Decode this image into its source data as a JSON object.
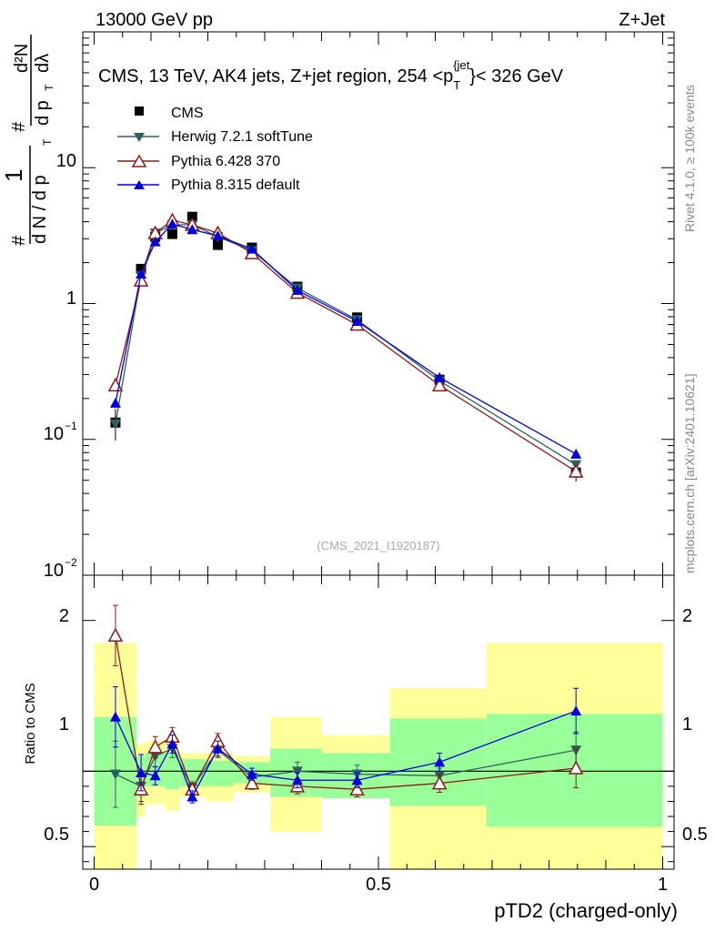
{
  "header": {
    "left": "13000 GeV pp",
    "right": "Z+Jet"
  },
  "side_labels": {
    "rivet": "Rivet 4.1.0, ≥ 100k events",
    "mcplots": "mcplots.cern.ch [arXiv:2401.10621]"
  },
  "chart_data": [
    {
      "type": "scatter",
      "panel": "main",
      "title": "CMS, 13 TeV, AK4 jets, Z+jet region, 254 <p_T^{jet}< 326 GeV",
      "title_parts": {
        "prefix": "CMS, 13 TeV, AK4 jets, Z+jet region, 254 <p",
        "sub": "T",
        "sup": "{jet",
        "suffix": "}< 326 GeV"
      },
      "watermark": "(CMS_2021_I1920187)",
      "ylabel": "1/dN/dpT dN^2/dpT dλ",
      "ylabel_parts": {
        "hash": "#",
        "one": "1",
        "dN": "d N / d p",
        "d2N": "d²N",
        "dpdl": "d p",
        "dlambda": "dλ",
        "T": "T"
      },
      "yscale": "log",
      "ylim": [
        0.01,
        100
      ],
      "xlim": [
        -0.02,
        1.02
      ],
      "ytick_values": [
        0.01,
        0.1,
        1,
        10
      ],
      "ytick_labels": {
        "e-2": "10",
        "e-2sup": "−2",
        "e-1": "10",
        "e-1sup": "−1",
        "one": "1",
        "ten": "10"
      },
      "x": [
        0.0375,
        0.0825,
        0.1075,
        0.1375,
        0.1725,
        0.2175,
        0.2775,
        0.3575,
        0.4625,
        0.6075,
        0.8475
      ],
      "series": [
        {
          "name": "CMS",
          "values": [
            0.133,
            1.8,
            3.1,
            3.25,
            4.35,
            2.7,
            2.58,
            1.33,
            0.79,
            0.275,
            0.057
          ],
          "color": "#000000",
          "marker": "square",
          "err_up": [
            0.035,
            0.1,
            0.15,
            0.15,
            0.2,
            0.12,
            0.1,
            0.06,
            0.04,
            0.02,
            0.008
          ]
        },
        {
          "name": "Herwig 7.2.1 softTune",
          "values": [
            0.13,
            1.6,
            3.3,
            3.8,
            3.8,
            3.1,
            2.45,
            1.3,
            0.76,
            0.27,
            0.065
          ],
          "color": "#2e6060",
          "marker": "triangle-down"
        },
        {
          "name": "Pythia 6.428 370",
          "values": [
            0.25,
            1.48,
            3.3,
            4.1,
            3.8,
            3.3,
            2.35,
            1.2,
            0.7,
            0.25,
            0.058
          ],
          "color": "#8b1a1a",
          "marker": "triangle-up-open"
        },
        {
          "name": "Pythia 8.315 default",
          "values": [
            0.185,
            1.65,
            2.85,
            3.85,
            3.5,
            3.15,
            2.52,
            1.25,
            0.74,
            0.285,
            0.078
          ],
          "color": "#0000dd",
          "marker": "triangle-up"
        }
      ],
      "legend_position": "top-left"
    },
    {
      "type": "scatter",
      "panel": "ratio",
      "ylabel": "Ratio to CMS",
      "xlabel": "pTD2 (charged-only)",
      "ylim": [
        0.35,
        2.3
      ],
      "xlim": [
        -0.02,
        1.02
      ],
      "ytick_labels": {
        "half": "0.5",
        "one": "1",
        "two": "2"
      },
      "xtick_labels": [
        "0",
        "0.5",
        "1"
      ],
      "xtick_values": [
        0,
        0.5,
        1
      ],
      "bins": [
        {
          "lo": 0.0,
          "hi": 0.075,
          "g_lo": 0.64,
          "g_hi": 1.36,
          "y_lo": 0.0,
          "y_hi": 1.85
        },
        {
          "lo": 0.075,
          "hi": 0.09,
          "g_lo": 0.83,
          "g_hi": 1.1,
          "y_lo": 0.7,
          "y_hi": 1.18
        },
        {
          "lo": 0.09,
          "hi": 0.125,
          "g_lo": 0.9,
          "g_hi": 1.12,
          "y_lo": 0.78,
          "y_hi": 1.2
        },
        {
          "lo": 0.125,
          "hi": 0.15,
          "g_lo": 0.88,
          "g_hi": 1.12,
          "y_lo": 0.74,
          "y_hi": 1.22
        },
        {
          "lo": 0.15,
          "hi": 0.195,
          "g_lo": 0.9,
          "g_hi": 1.08,
          "y_lo": 0.83,
          "y_hi": 1.12
        },
        {
          "lo": 0.195,
          "hi": 0.245,
          "g_lo": 0.9,
          "g_hi": 1.07,
          "y_lo": 0.8,
          "y_hi": 1.12
        },
        {
          "lo": 0.245,
          "hi": 0.31,
          "g_lo": 0.92,
          "g_hi": 1.06,
          "y_lo": 0.86,
          "y_hi": 1.1
        },
        {
          "lo": 0.31,
          "hi": 0.4,
          "g_lo": 0.83,
          "g_hi": 1.15,
          "y_lo": 0.6,
          "y_hi": 1.36
        },
        {
          "lo": 0.4,
          "hi": 0.52,
          "g_lo": 0.82,
          "g_hi": 1.12,
          "y_lo": 0.82,
          "y_hi": 1.24
        },
        {
          "lo": 0.52,
          "hi": 0.69,
          "g_lo": 0.77,
          "g_hi": 1.35,
          "y_lo": 0.0,
          "y_hi": 1.55
        },
        {
          "lo": 0.69,
          "hi": 1.0,
          "g_lo": 0.63,
          "g_hi": 1.38,
          "y_lo": 0.0,
          "y_hi": 1.85
        }
      ],
      "series": [
        {
          "name": "Herwig 7.2.1 softTune",
          "values": [
            0.98,
            0.9,
            1.1,
            1.15,
            0.89,
            1.14,
            0.96,
            1.0,
            0.98,
            0.97,
            1.14
          ],
          "err": [
            0.22,
            0.1,
            0.07,
            0.06,
            0.04,
            0.05,
            0.04,
            0.06,
            0.06,
            0.05,
            0.12
          ],
          "color": "#2e6060",
          "marker": "triangle-down"
        },
        {
          "name": "Pythia 6.428 370",
          "values": [
            1.9,
            0.88,
            1.16,
            1.23,
            0.88,
            1.2,
            0.92,
            0.9,
            0.88,
            0.92,
            1.02
          ],
          "err": [
            0.2,
            0.1,
            0.07,
            0.06,
            0.04,
            0.05,
            0.04,
            0.05,
            0.05,
            0.06,
            0.13
          ],
          "color": "#8b1a1a",
          "marker": "triangle-up-open"
        },
        {
          "name": "Pythia 8.315 default",
          "values": [
            1.36,
            0.99,
            0.97,
            1.18,
            0.83,
            1.15,
            0.98,
            0.94,
            0.94,
            1.06,
            1.4
          ],
          "err": [
            0.2,
            0.12,
            0.06,
            0.06,
            0.04,
            0.05,
            0.04,
            0.05,
            0.05,
            0.06,
            0.15
          ],
          "color": "#0000dd",
          "marker": "triangle-up"
        }
      ]
    }
  ]
}
